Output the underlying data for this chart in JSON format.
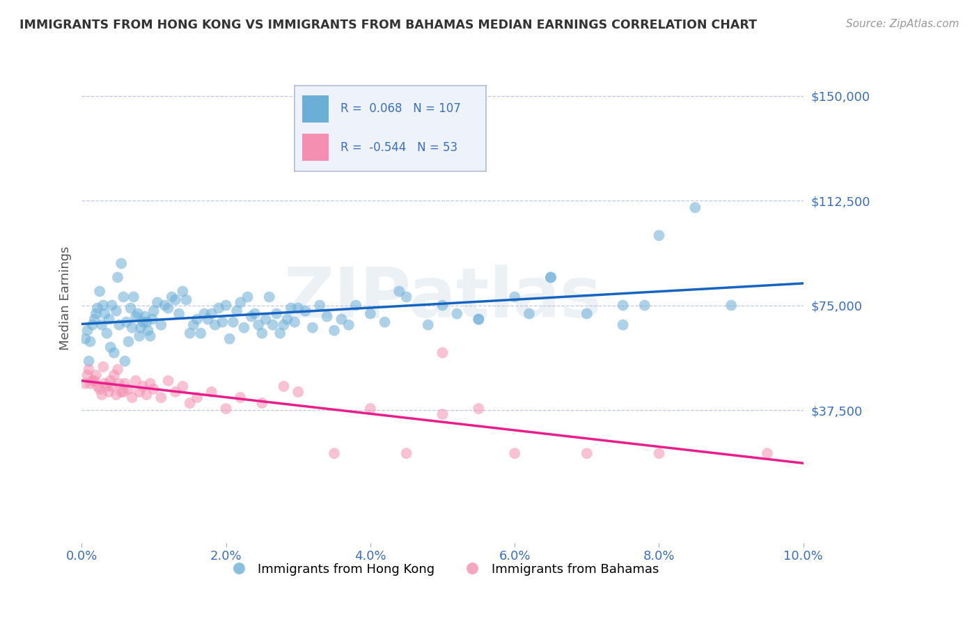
{
  "title": "IMMIGRANTS FROM HONG KONG VS IMMIGRANTS FROM BAHAMAS MEDIAN EARNINGS CORRELATION CHART",
  "source": "Source: ZipAtlas.com",
  "ylabel": "Median Earnings",
  "y_ticks": [
    0,
    37500,
    75000,
    112500,
    150000
  ],
  "y_tick_labels": [
    "",
    "$37,500",
    "$75,000",
    "$112,500",
    "$150,000"
  ],
  "x_lim": [
    0.0,
    10.0
  ],
  "y_lim": [
    -10000,
    165000
  ],
  "R_hk": 0.068,
  "N_hk": 107,
  "R_bah": -0.544,
  "N_bah": 53,
  "hk_color": "#6baed6",
  "bah_color": "#f48fb1",
  "hk_line_color": "#1565c0",
  "bah_line_color": "#e91e8c",
  "axis_color": "#3a6ec0",
  "hk_x": [
    0.05,
    0.08,
    0.1,
    0.12,
    0.15,
    0.18,
    0.2,
    0.22,
    0.25,
    0.28,
    0.3,
    0.32,
    0.35,
    0.38,
    0.4,
    0.42,
    0.45,
    0.48,
    0.5,
    0.52,
    0.55,
    0.58,
    0.6,
    0.62,
    0.65,
    0.68,
    0.7,
    0.72,
    0.75,
    0.78,
    0.8,
    0.82,
    0.85,
    0.88,
    0.9,
    0.92,
    0.95,
    0.98,
    1.0,
    1.05,
    1.1,
    1.15,
    1.2,
    1.25,
    1.3,
    1.35,
    1.4,
    1.45,
    1.5,
    1.55,
    1.6,
    1.65,
    1.7,
    1.75,
    1.8,
    1.85,
    1.9,
    1.95,
    2.0,
    2.05,
    2.1,
    2.15,
    2.2,
    2.25,
    2.3,
    2.35,
    2.4,
    2.45,
    2.5,
    2.55,
    2.6,
    2.65,
    2.7,
    2.75,
    2.8,
    2.85,
    2.9,
    2.95,
    3.0,
    3.1,
    3.2,
    3.3,
    3.4,
    3.5,
    3.6,
    3.7,
    3.8,
    4.0,
    4.2,
    4.4,
    4.8,
    5.0,
    5.2,
    5.5,
    6.0,
    6.2,
    6.5,
    7.0,
    7.5,
    7.8,
    8.0,
    9.0,
    4.5,
    5.5,
    6.5,
    7.5,
    8.5
  ],
  "hk_y": [
    63000,
    66000,
    55000,
    62000,
    68000,
    70000,
    72000,
    74000,
    80000,
    68000,
    75000,
    72000,
    65000,
    70000,
    60000,
    75000,
    58000,
    73000,
    85000,
    68000,
    90000,
    78000,
    55000,
    69000,
    62000,
    74000,
    67000,
    78000,
    71000,
    72000,
    64000,
    67000,
    69000,
    71000,
    69000,
    66000,
    64000,
    70000,
    73000,
    76000,
    68000,
    75000,
    74000,
    78000,
    77000,
    72000,
    80000,
    77000,
    65000,
    68000,
    70000,
    65000,
    72000,
    70000,
    72000,
    68000,
    74000,
    69000,
    75000,
    63000,
    69000,
    73000,
    76000,
    67000,
    78000,
    71000,
    72000,
    68000,
    65000,
    70000,
    78000,
    68000,
    72000,
    65000,
    68000,
    70000,
    74000,
    69000,
    74000,
    73000,
    67000,
    75000,
    71000,
    66000,
    70000,
    68000,
    75000,
    72000,
    69000,
    80000,
    68000,
    75000,
    72000,
    70000,
    78000,
    72000,
    85000,
    72000,
    68000,
    75000,
    100000,
    75000,
    78000,
    70000,
    85000,
    75000,
    110000
  ],
  "bah_x": [
    0.05,
    0.08,
    0.1,
    0.12,
    0.15,
    0.18,
    0.2,
    0.22,
    0.25,
    0.28,
    0.3,
    0.32,
    0.35,
    0.38,
    0.4,
    0.42,
    0.45,
    0.48,
    0.5,
    0.52,
    0.55,
    0.58,
    0.6,
    0.65,
    0.7,
    0.75,
    0.8,
    0.85,
    0.9,
    0.95,
    1.0,
    1.1,
    1.2,
    1.3,
    1.4,
    1.5,
    1.6,
    1.8,
    2.0,
    2.2,
    2.5,
    2.8,
    3.0,
    3.5,
    4.0,
    4.5,
    5.0,
    5.0,
    5.5,
    6.0,
    7.0,
    8.0,
    9.5
  ],
  "bah_y": [
    47000,
    50000,
    52000,
    47000,
    48000,
    48000,
    50000,
    46000,
    45000,
    43000,
    53000,
    47000,
    46000,
    44000,
    48000,
    46000,
    50000,
    43000,
    52000,
    47000,
    44000,
    44000,
    47000,
    45000,
    42000,
    48000,
    44000,
    46000,
    43000,
    47000,
    45000,
    42000,
    48000,
    44000,
    46000,
    40000,
    42000,
    44000,
    38000,
    42000,
    40000,
    46000,
    44000,
    22000,
    38000,
    22000,
    36000,
    58000,
    38000,
    22000,
    22000,
    22000,
    22000
  ]
}
